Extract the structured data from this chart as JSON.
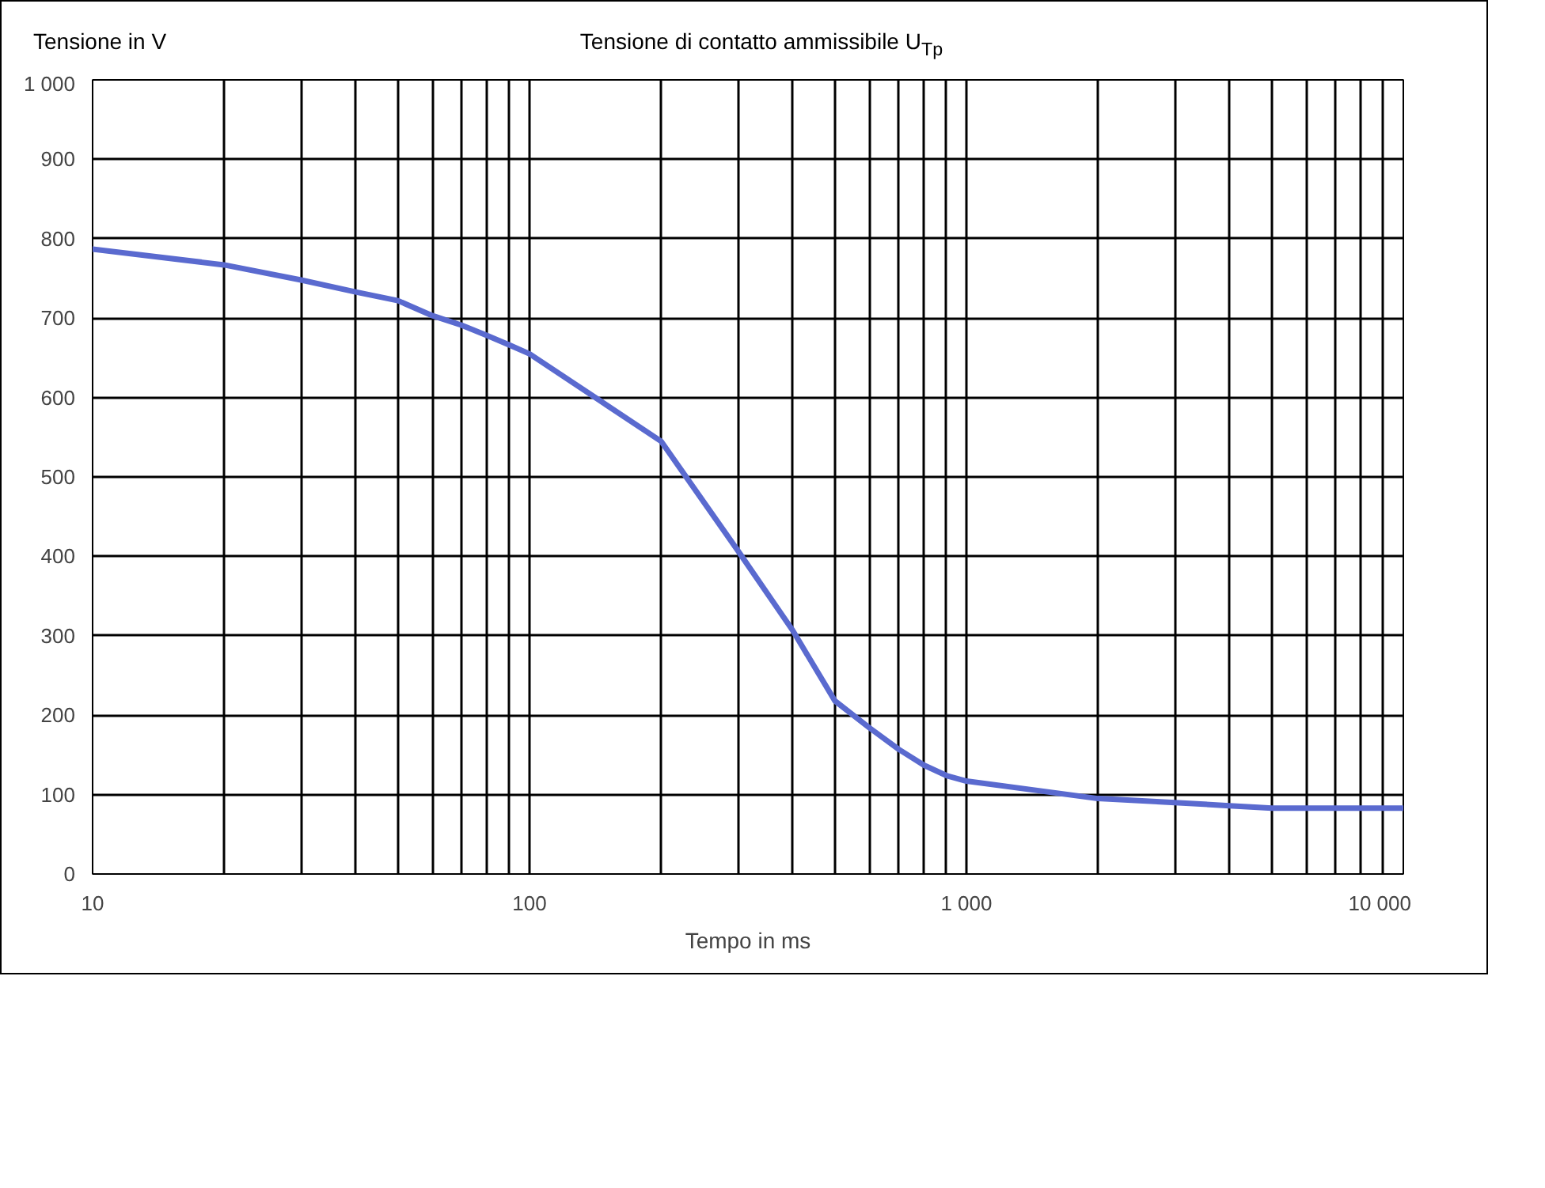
{
  "chart_data": {
    "type": "line",
    "title": "Tensione di contatto ammissibile U$_{Tp}$",
    "xlabel": "Tempo in ms",
    "ylabel": "Tensione in V",
    "log": "x",
    "grid": true,
    "xlim": [
      10,
      10000
    ],
    "ylim": [
      0,
      1000
    ],
    "xticks": [
      10,
      {
        "value": 20,
        "label": null
      },
      {
        "value": 30,
        "label": null
      },
      {
        "value": 40,
        "label": null
      },
      {
        "value": 50,
        "label": null
      },
      {
        "value": 60,
        "label": null
      },
      {
        "value": 70,
        "label": null
      },
      {
        "value": 80,
        "label": null
      },
      {
        "value": 90,
        "label": null
      },
      100,
      {
        "value": 200,
        "label": null
      },
      {
        "value": 300,
        "label": null
      },
      {
        "value": 400,
        "label": null
      },
      {
        "value": 500,
        "label": null
      },
      {
        "value": 600,
        "label": null
      },
      {
        "value": 700,
        "label": null
      },
      {
        "value": 800,
        "label": null
      },
      {
        "value": 900,
        "label": null
      },
      {
        "value": 1000,
        "label": "1 000"
      },
      {
        "value": 2000,
        "label": null
      },
      {
        "value": 3000,
        "label": null
      },
      {
        "value": 4000,
        "label": null
      },
      {
        "value": 5000,
        "label": null
      },
      {
        "value": 6000,
        "label": null
      },
      {
        "value": 7000,
        "label": null
      },
      {
        "value": 8000,
        "label": null
      },
      {
        "value": 9000,
        "label": null
      },
      {
        "value": 10000,
        "label": "10 000"
      }
    ],
    "yticks": [
      0,
      100,
      200,
      300,
      400,
      500,
      600,
      700,
      800,
      900,
      {
        "value": 1000,
        "label": "1 000"
      }
    ],
    "x": [
      10,
      20,
      30,
      40,
      50,
      60,
      70,
      80,
      90,
      100,
      200,
      300,
      400,
      500,
      600,
      700,
      800,
      900,
      1000,
      2000,
      3000,
      4000,
      5000,
      10000
    ],
    "series": [
      {
        "color": "#5a6acf",
        "values": [
          787,
          767,
          748,
          733,
          722,
          703,
          691,
          678,
          666,
          655,
          545,
          407,
          307,
          218,
          184,
          157,
          137,
          124,
          117,
          95,
          90,
          86,
          83,
          83
        ]
      }
    ]
  }
}
